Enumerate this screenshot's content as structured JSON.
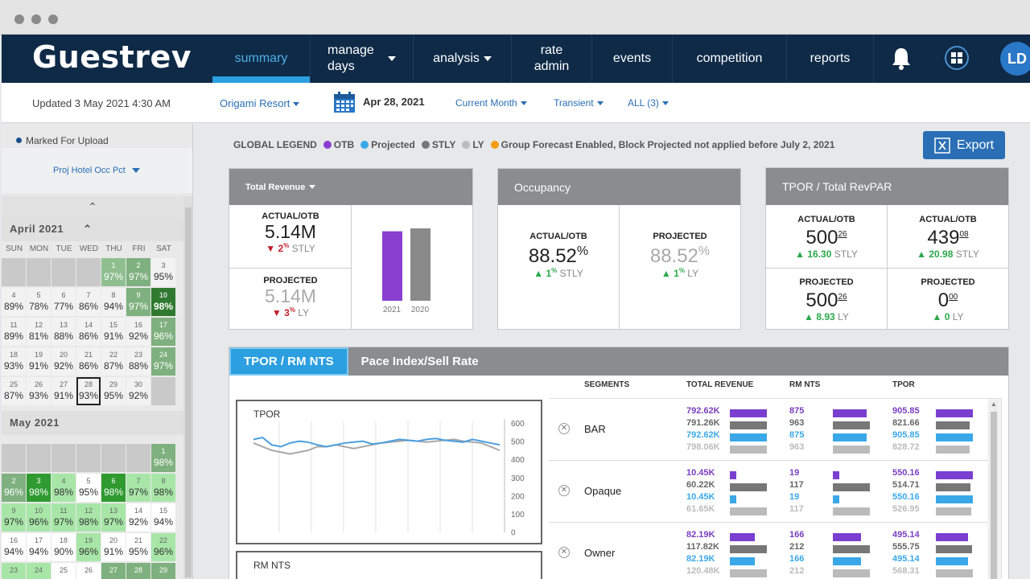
{
  "header": {
    "logo": "Guestrev",
    "nav": [
      {
        "label": "summary"
      },
      {
        "label": "manage days"
      },
      {
        "label": "analysis"
      },
      {
        "label": "rate admin"
      },
      {
        "label": "events"
      },
      {
        "label": "competition"
      },
      {
        "label": "reports"
      }
    ],
    "avatar": "LD"
  },
  "subbar": {
    "updated": "Updated 3 May 2021 4:30 AM",
    "property": "Origami Resort",
    "date": "Apr 28, 2021",
    "period": "Current Month",
    "segment_type": "Transient",
    "filter": "ALL (3)"
  },
  "sidebar": {
    "marked": "Marked For Upload",
    "metric": "Proj Hotel Occ Pct",
    "dow": [
      "SUN",
      "MON",
      "TUE",
      "WED",
      "THU",
      "FRI",
      "SAT"
    ],
    "april": {
      "title": "April 2021",
      "weeks": [
        [
          {
            "d": "",
            "p": ""
          },
          {
            "d": "",
            "p": ""
          },
          {
            "d": "",
            "p": ""
          },
          {
            "d": "",
            "p": ""
          },
          {
            "d": "1",
            "p": "97%"
          },
          {
            "d": "2",
            "p": "97%"
          },
          {
            "d": "3",
            "p": "95%"
          }
        ],
        [
          {
            "d": "4",
            "p": "89%"
          },
          {
            "d": "5",
            "p": "78%"
          },
          {
            "d": "6",
            "p": "77%"
          },
          {
            "d": "7",
            "p": "86%"
          },
          {
            "d": "8",
            "p": "94%"
          },
          {
            "d": "9",
            "p": "97%"
          },
          {
            "d": "10",
            "p": "98%"
          }
        ],
        [
          {
            "d": "11",
            "p": "89%"
          },
          {
            "d": "12",
            "p": "81%"
          },
          {
            "d": "13",
            "p": "88%"
          },
          {
            "d": "14",
            "p": "86%"
          },
          {
            "d": "15",
            "p": "91%"
          },
          {
            "d": "16",
            "p": "92%"
          },
          {
            "d": "17",
            "p": "96%"
          }
        ],
        [
          {
            "d": "18",
            "p": "93%"
          },
          {
            "d": "19",
            "p": "91%"
          },
          {
            "d": "20",
            "p": "92%"
          },
          {
            "d": "21",
            "p": "86%"
          },
          {
            "d": "22",
            "p": "87%"
          },
          {
            "d": "23",
            "p": "88%"
          },
          {
            "d": "24",
            "p": "97%"
          }
        ],
        [
          {
            "d": "25",
            "p": "87%"
          },
          {
            "d": "26",
            "p": "93%"
          },
          {
            "d": "27",
            "p": "91%"
          },
          {
            "d": "28",
            "p": "93%"
          },
          {
            "d": "29",
            "p": "95%"
          },
          {
            "d": "30",
            "p": "92%"
          },
          {
            "d": "",
            "p": ""
          }
        ]
      ]
    },
    "may": {
      "title": "May 2021",
      "weeks": [
        [
          {
            "d": "",
            "p": ""
          },
          {
            "d": "",
            "p": ""
          },
          {
            "d": "",
            "p": ""
          },
          {
            "d": "",
            "p": ""
          },
          {
            "d": "",
            "p": ""
          },
          {
            "d": "",
            "p": ""
          },
          {
            "d": "1",
            "p": "98%"
          }
        ],
        [
          {
            "d": "2",
            "p": "96%"
          },
          {
            "d": "3",
            "p": "98%"
          },
          {
            "d": "4",
            "p": "98%"
          },
          {
            "d": "5",
            "p": "95%"
          },
          {
            "d": "6",
            "p": "98%"
          },
          {
            "d": "7",
            "p": "97%"
          },
          {
            "d": "8",
            "p": "98%"
          }
        ],
        [
          {
            "d": "9",
            "p": "97%"
          },
          {
            "d": "10",
            "p": "96%"
          },
          {
            "d": "11",
            "p": "97%"
          },
          {
            "d": "12",
            "p": "98%"
          },
          {
            "d": "13",
            "p": "97%"
          },
          {
            "d": "14",
            "p": "92%"
          },
          {
            "d": "15",
            "p": "94%"
          }
        ],
        [
          {
            "d": "16",
            "p": "94%"
          },
          {
            "d": "17",
            "p": "94%"
          },
          {
            "d": "18",
            "p": "90%"
          },
          {
            "d": "19",
            "p": "96%"
          },
          {
            "d": "20",
            "p": "91%"
          },
          {
            "d": "21",
            "p": "95%"
          },
          {
            "d": "22",
            "p": "96%"
          }
        ],
        [
          {
            "d": "23",
            "p": ""
          },
          {
            "d": "24",
            "p": ""
          },
          {
            "d": "25",
            "p": ""
          },
          {
            "d": "26",
            "p": ""
          },
          {
            "d": "27",
            "p": ""
          },
          {
            "d": "28",
            "p": ""
          },
          {
            "d": "29",
            "p": ""
          }
        ]
      ]
    }
  },
  "legend": {
    "title": "GLOBAL LEGEND",
    "items": [
      {
        "label": "OTB",
        "color": "#8a3fd0"
      },
      {
        "label": "Projected",
        "color": "#3aa8e8"
      },
      {
        "label": "STLY",
        "color": "#777777"
      },
      {
        "label": "LY",
        "color": "#bbbbbb"
      },
      {
        "label": "Group Forecast Enabled, Block Projected not applied before July 2, 2021",
        "color": "#f39c12"
      }
    ]
  },
  "export_label": "Export",
  "revenue_card": {
    "title": "Total Revenue",
    "actual_label": "ACTUAL/OTB",
    "actual_value": "5.14M",
    "actual_delta": "2",
    "actual_delta_unit": "%",
    "actual_cmp": "STLY",
    "proj_label": "PROJECTED",
    "proj_value": "5.14M",
    "proj_delta": "3",
    "proj_delta_unit": "%",
    "proj_cmp": "LY",
    "bar_labels": [
      "2021",
      "2020"
    ]
  },
  "occupancy_card": {
    "title": "Occupancy",
    "actual_label": "ACTUAL/OTB",
    "actual_value": "88.52",
    "actual_unit": "%",
    "actual_delta": "1",
    "actual_delta_unit": "%",
    "actual_cmp": "STLY",
    "proj_label": "PROJECTED",
    "proj_value": "88.52",
    "proj_unit": "%",
    "proj_delta": "1",
    "proj_delta_unit": "%",
    "proj_cmp": "LY"
  },
  "tpor_card": {
    "title": "TPOR / Total RevPAR",
    "a1_label": "ACTUAL/OTB",
    "a1_value": "500",
    "a1_sup": "26",
    "a1_delta": "16.30",
    "a1_cmp": "STLY",
    "a2_label": "ACTUAL/OTB",
    "a2_value": "439",
    "a2_sup": "08",
    "a2_delta": "20.98",
    "a2_cmp": "STLY",
    "p1_label": "PROJECTED",
    "p1_value": "500",
    "p1_sup": "26",
    "p1_delta": "8.93",
    "p1_cmp": "LY",
    "p2_label": "PROJECTED",
    "p2_value": "0",
    "p2_sup": "00",
    "p2_delta": "0",
    "p2_cmp": "LY"
  },
  "panel": {
    "tabs": [
      "TPOR / RM NTS",
      "Pace Index/Sell Rate"
    ],
    "chart1_title": "TPOR",
    "chart2_title": "RM NTS",
    "y_ticks": [
      "600",
      "500",
      "400",
      "300",
      "200",
      "100",
      "0"
    ],
    "headers": [
      "SEGMENTS",
      "TOTAL REVENUE",
      "RM NTS",
      "TPOR"
    ],
    "segments": [
      {
        "name": "BAR",
        "rev": [
          "792.62K",
          "791.26K",
          "792.62K",
          "798.06K"
        ],
        "rm": [
          "875",
          "963",
          "875",
          "963"
        ],
        "tpor": [
          "905.85",
          "821.66",
          "905.85",
          "828.72"
        ]
      },
      {
        "name": "Opaque",
        "rev": [
          "10.45K",
          "60.22K",
          "10.45K",
          "61.65K"
        ],
        "rm": [
          "19",
          "117",
          "19",
          "117"
        ],
        "tpor": [
          "550.16",
          "514.71",
          "550.16",
          "526.95"
        ]
      },
      {
        "name": "Owner",
        "rev": [
          "82.19K",
          "117.82K",
          "82.19K",
          "120.48K"
        ],
        "rm": [
          "166",
          "212",
          "166",
          "212"
        ],
        "tpor": [
          "495.14",
          "555.75",
          "495.14",
          "568.31"
        ]
      }
    ]
  },
  "chart_data": [
    {
      "type": "bar",
      "categories": [
        "2021",
        "2020"
      ],
      "values": [
        5.14,
        5.14
      ],
      "title": "",
      "xlabel": "",
      "ylabel": ""
    },
    {
      "type": "line",
      "title": "TPOR",
      "ylim": [
        0,
        600
      ],
      "series": [
        {
          "values": [
            510,
            520,
            480,
            470,
            490,
            500,
            495,
            480,
            470,
            480,
            490,
            495,
            500,
            485,
            490,
            500,
            510,
            505,
            500,
            510,
            515,
            505,
            500,
            495,
            510,
            500,
            490,
            480
          ]
        },
        {
          "values": [
            490,
            470,
            450,
            440,
            430,
            440,
            450,
            470,
            470,
            480,
            470,
            460,
            470,
            480,
            490,
            495,
            500,
            505,
            500,
            495,
            500,
            505,
            510,
            500,
            495,
            490,
            470,
            450
          ]
        }
      ]
    }
  ]
}
